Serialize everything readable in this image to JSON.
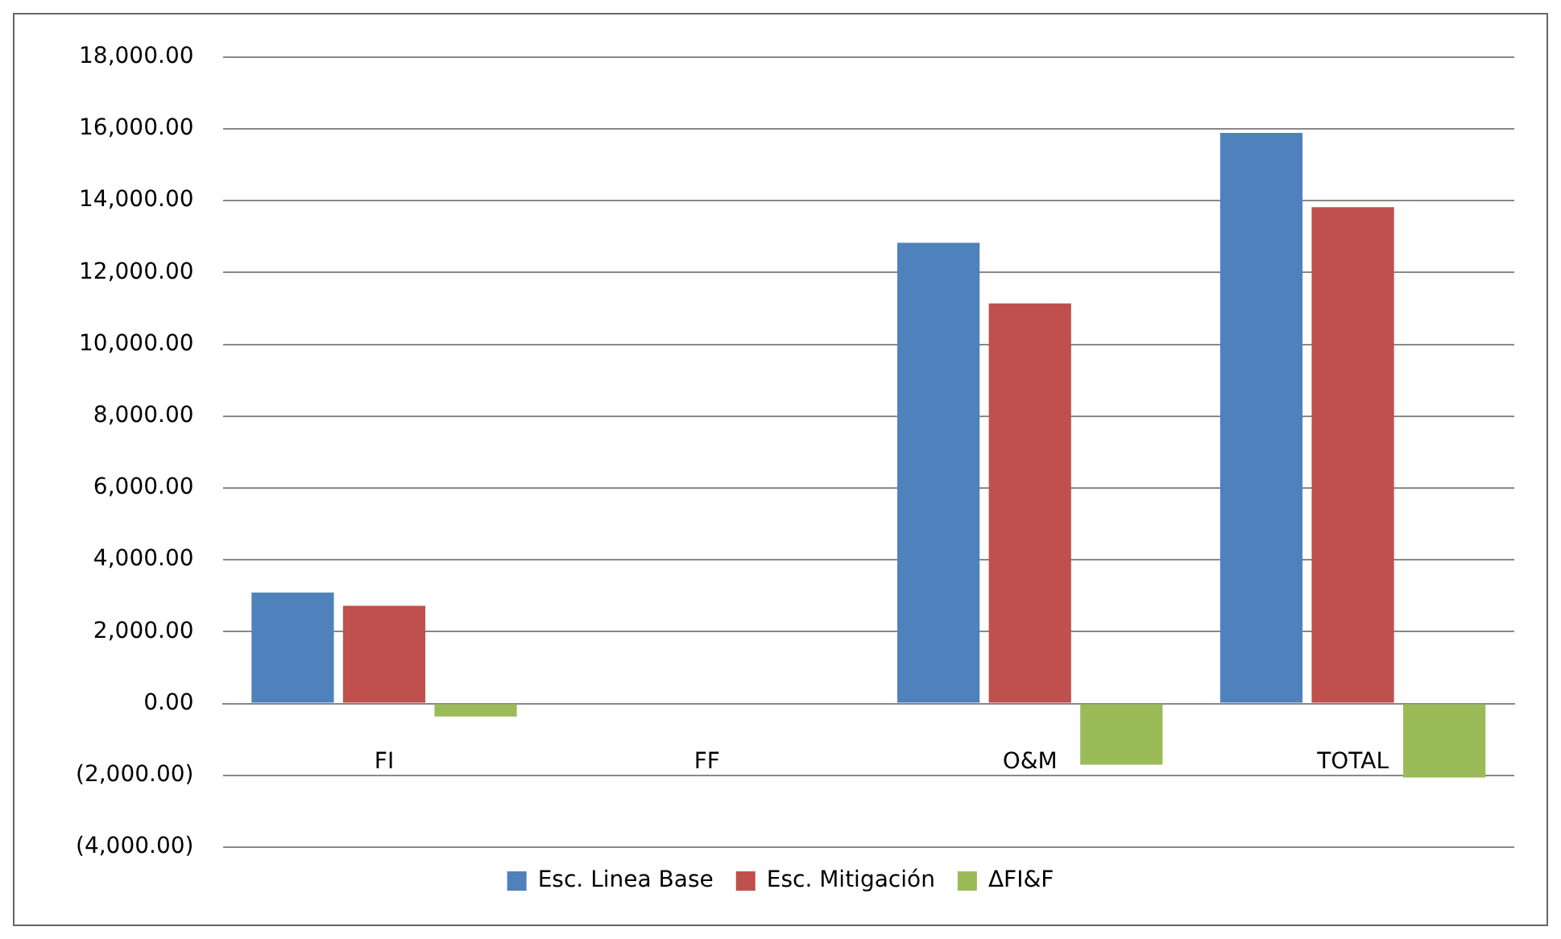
{
  "chart_data": {
    "type": "bar",
    "categories": [
      "FI",
      "FF",
      "O&M",
      "TOTAL"
    ],
    "series": [
      {
        "name": "Esc. Linea Base",
        "color": "#4f81bd",
        "values": [
          3090,
          0,
          12830,
          15890
        ]
      },
      {
        "name": "Esc. Mitigación",
        "color": "#c0504d",
        "values": [
          2720,
          0,
          11140,
          13820
        ]
      },
      {
        "name": "ΔFI&F",
        "color": "#9bbb59",
        "values": [
          -360,
          0,
          -1700,
          -2060
        ]
      }
    ],
    "ylim": [
      -4000,
      18000
    ],
    "yticks": [
      {
        "value": -4000,
        "label": "(4,000.00)"
      },
      {
        "value": -2000,
        "label": "(2,000.00)"
      },
      {
        "value": 0,
        "label": "0.00"
      },
      {
        "value": 2000,
        "label": "2,000.00"
      },
      {
        "value": 4000,
        "label": "4,000.00"
      },
      {
        "value": 6000,
        "label": "6,000.00"
      },
      {
        "value": 8000,
        "label": "8,000.00"
      },
      {
        "value": 10000,
        "label": "10,000.00"
      },
      {
        "value": 12000,
        "label": "12,000.00"
      },
      {
        "value": 14000,
        "label": "14,000.00"
      },
      {
        "value": 16000,
        "label": "16,000.00"
      },
      {
        "value": 18000,
        "label": "18,000.00"
      }
    ],
    "grid": "y",
    "legend": "bottom"
  }
}
